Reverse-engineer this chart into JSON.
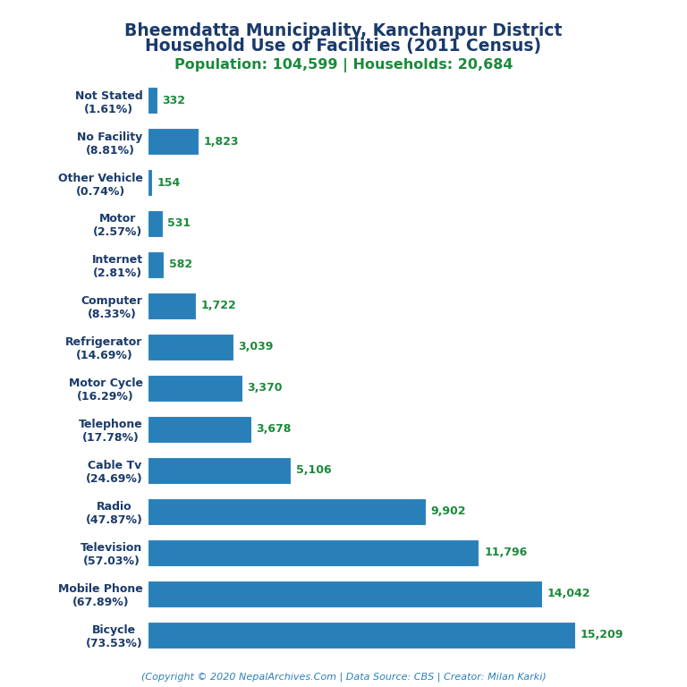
{
  "title_line1": "Bheemdatta Municipality, Kanchanpur District",
  "title_line2": "Household Use of Facilities (2011 Census)",
  "subtitle": "Population: 104,599 | Households: 20,684",
  "footer": "(Copyright © 2020 NepalArchives.Com | Data Source: CBS | Creator: Milan Karki)",
  "categories": [
    "Not Stated\n(1.61%)",
    "No Facility\n(8.81%)",
    "Other Vehicle\n(0.74%)",
    "Motor\n(2.57%)",
    "Internet\n(2.81%)",
    "Computer\n(8.33%)",
    "Refrigerator\n(14.69%)",
    "Motor Cycle\n(16.29%)",
    "Telephone\n(17.78%)",
    "Cable Tv\n(24.69%)",
    "Radio\n(47.87%)",
    "Television\n(57.03%)",
    "Mobile Phone\n(67.89%)",
    "Bicycle\n(73.53%)"
  ],
  "values": [
    332,
    1823,
    154,
    531,
    582,
    1722,
    3039,
    3370,
    3678,
    5106,
    9902,
    11796,
    14042,
    15209
  ],
  "value_labels": [
    "332",
    "1,823",
    "154",
    "531",
    "582",
    "1,722",
    "3,039",
    "3,370",
    "3,678",
    "5,106",
    "9,902",
    "11,796",
    "14,042",
    "15,209"
  ],
  "bar_color": "#2980b9",
  "title_color": "#1a3a6b",
  "subtitle_color": "#1a8a3a",
  "value_color": "#1a8a3a",
  "ylabel_color": "#1a3a6b",
  "footer_color": "#2980b9",
  "background_color": "#ffffff",
  "xlim": [
    0,
    17000
  ],
  "title_fontsize": 13.5,
  "subtitle_fontsize": 11.5,
  "label_fontsize": 9,
  "value_fontsize": 9,
  "footer_fontsize": 8
}
